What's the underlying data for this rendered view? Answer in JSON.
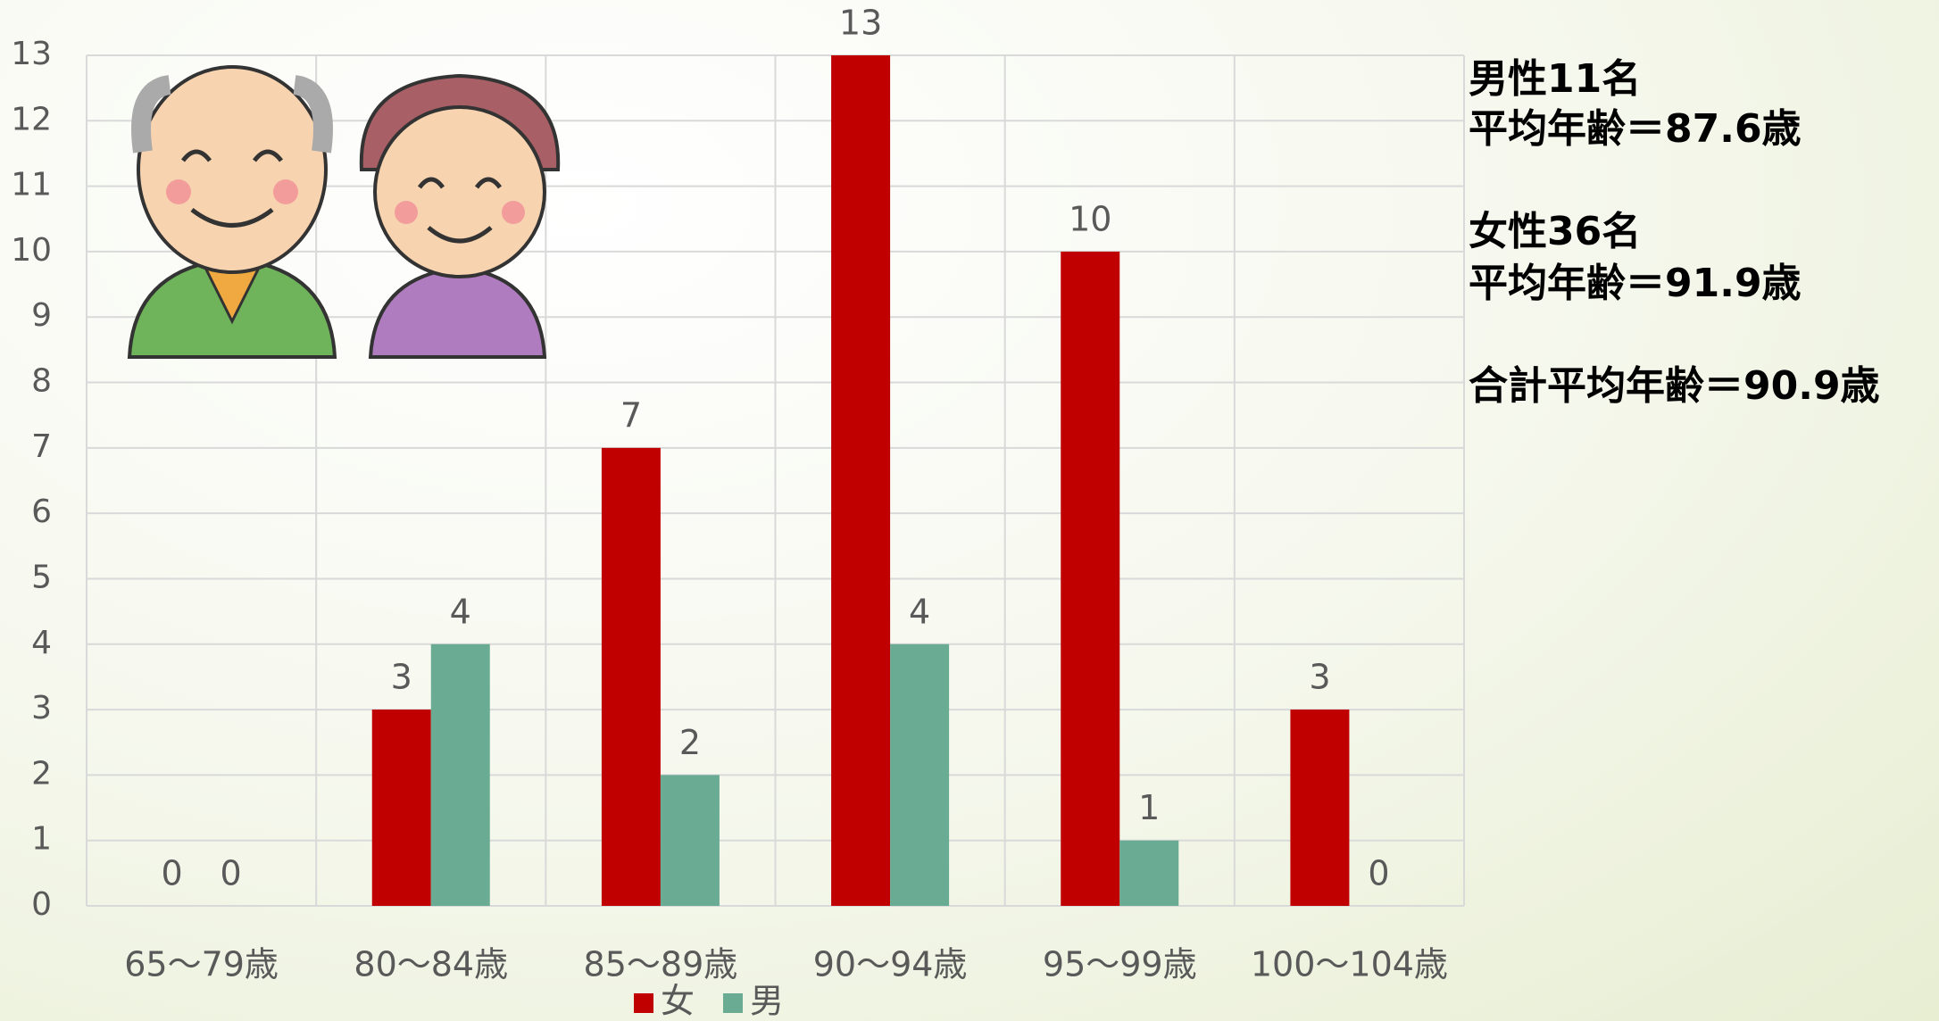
{
  "chart_data": {
    "type": "bar",
    "categories": [
      "65〜79歳",
      "80〜84歳",
      "85〜89歳",
      "90〜94歳",
      "95〜99歳",
      "100〜104歳"
    ],
    "series": [
      {
        "name": "女",
        "color": "#c00000",
        "values": [
          0,
          3,
          7,
          13,
          10,
          3
        ]
      },
      {
        "name": "男",
        "color": "#6aab93",
        "values": [
          0,
          4,
          2,
          4,
          1,
          0
        ]
      }
    ],
    "ylim": [
      0,
      13
    ],
    "yticks": [
      0,
      1,
      2,
      3,
      4,
      5,
      6,
      7,
      8,
      9,
      10,
      11,
      12,
      13
    ],
    "grid": true,
    "legend": "bottom",
    "annotations": [
      "男性11名",
      "平均年齢＝87.6歳",
      "女性36名",
      "平均年齢＝91.9歳",
      "合計平均年齢＝90.9歳"
    ]
  }
}
